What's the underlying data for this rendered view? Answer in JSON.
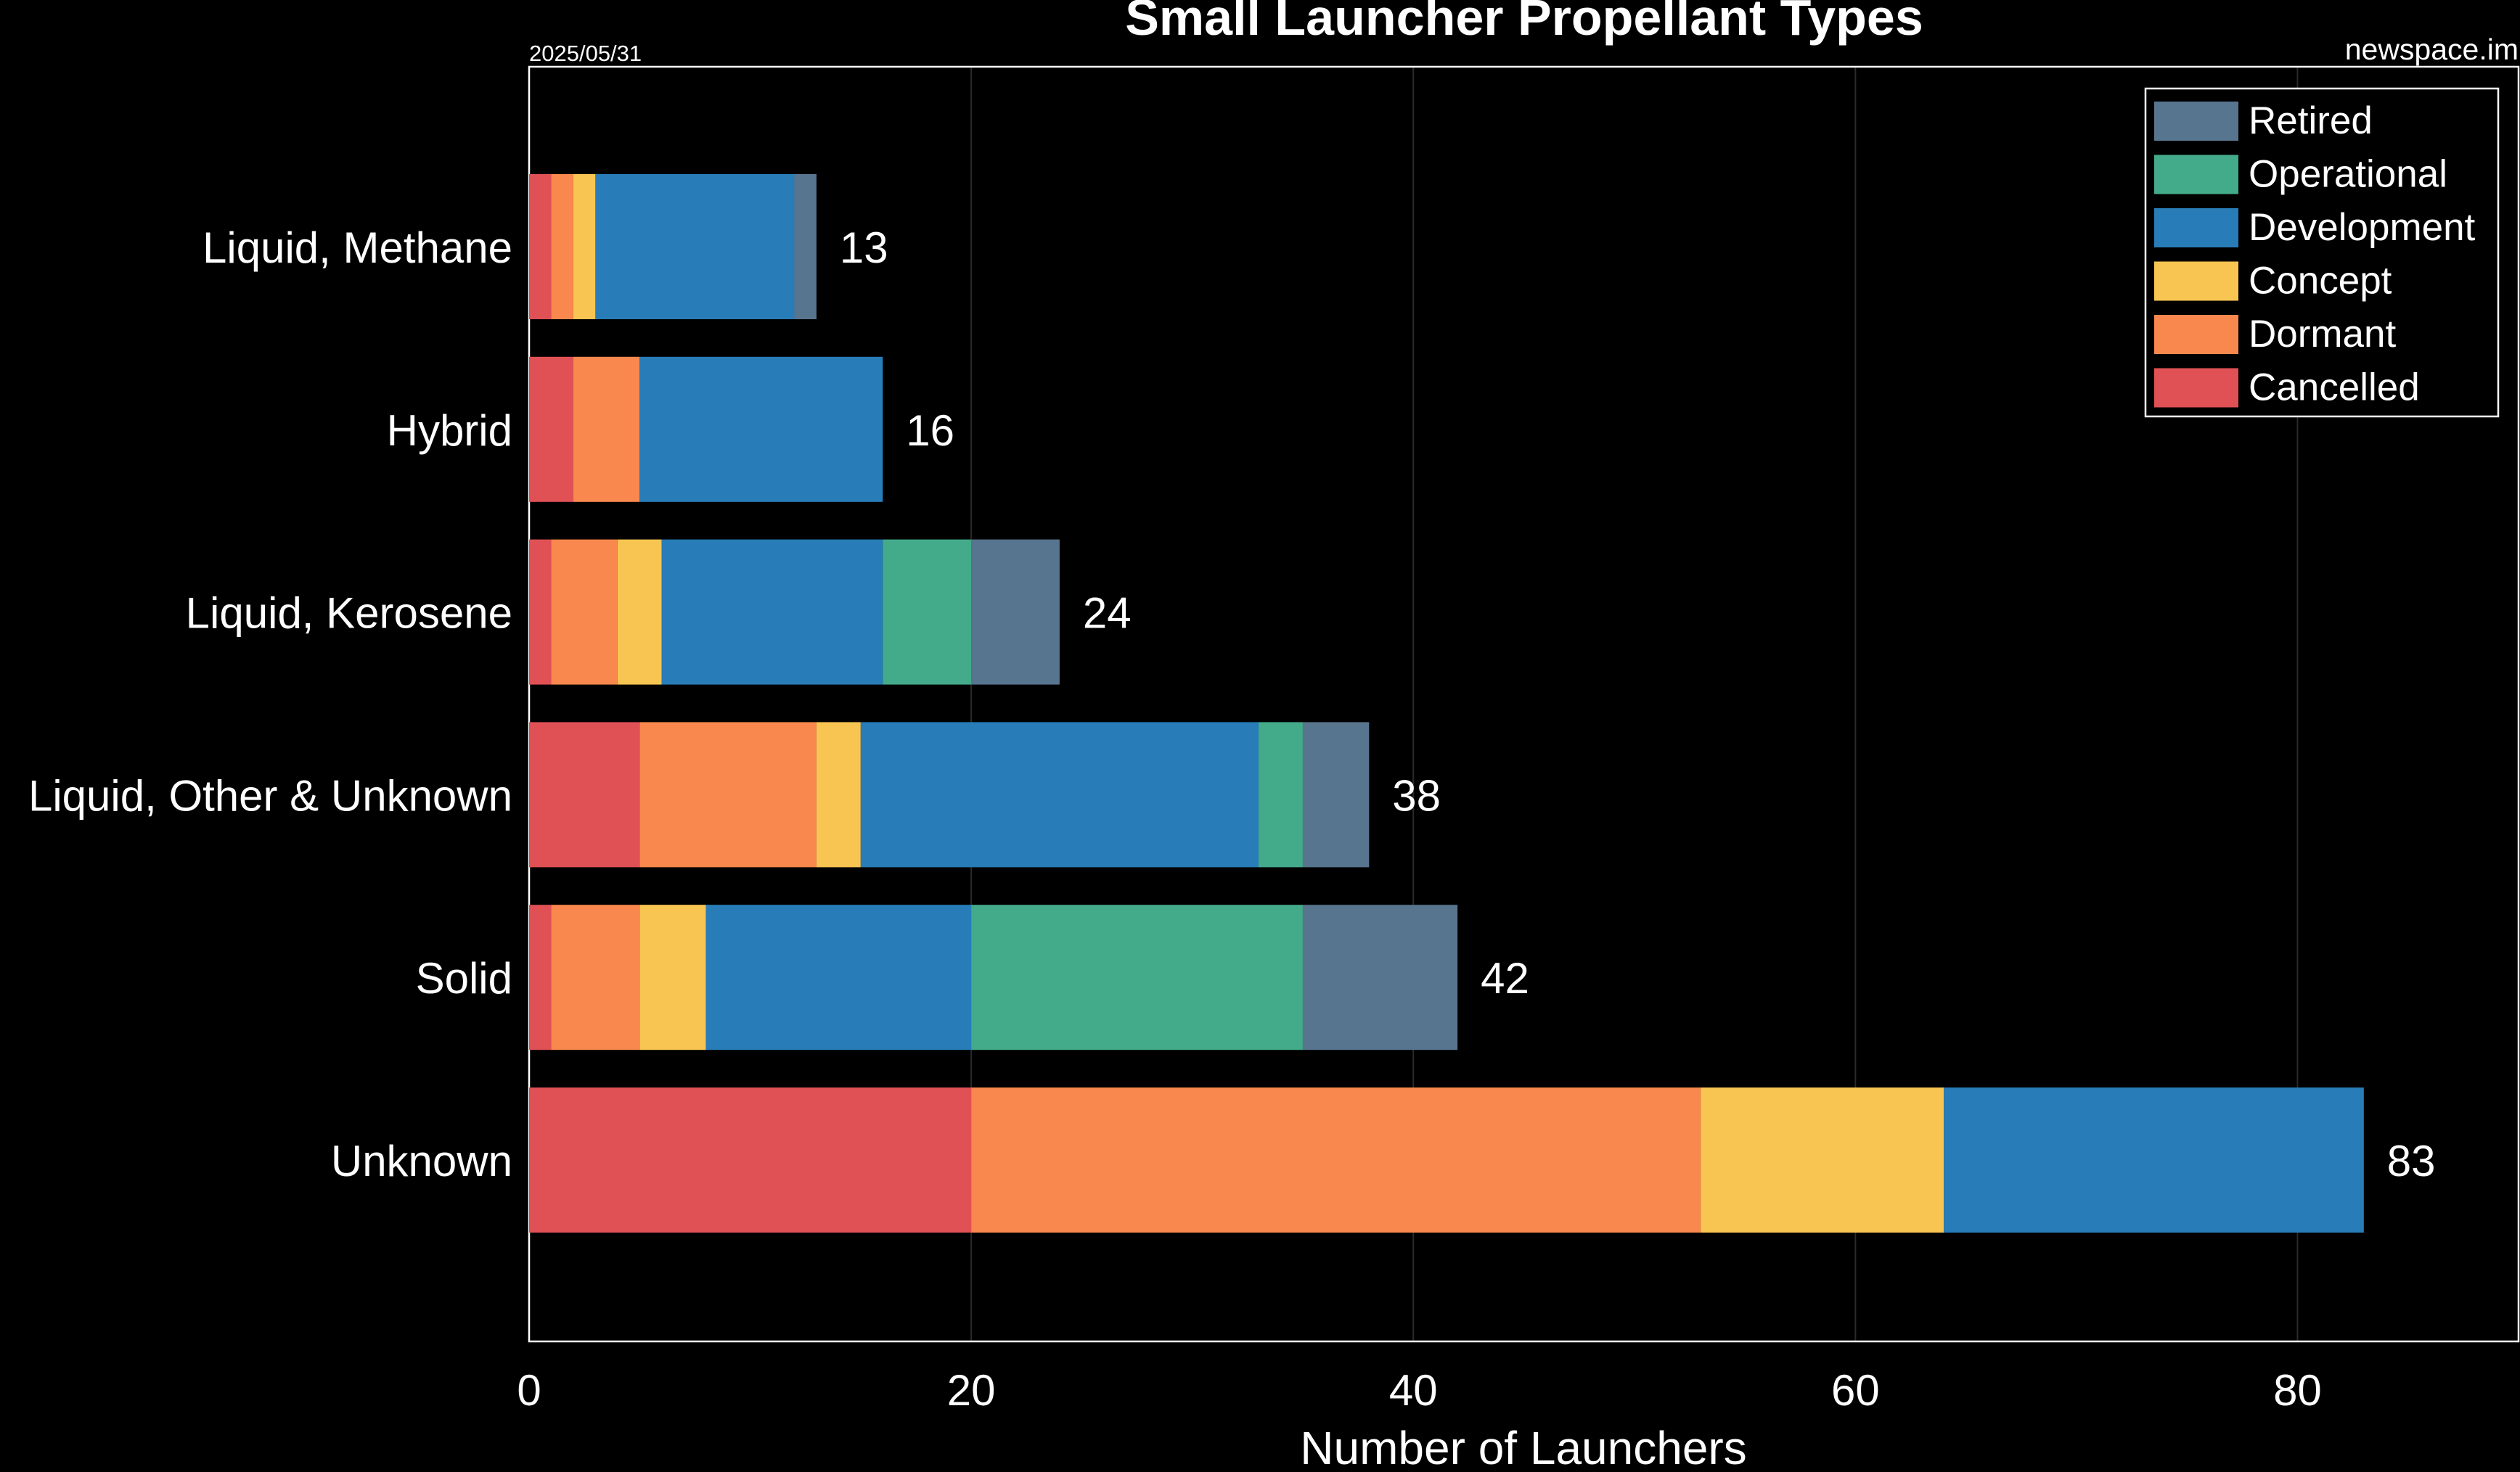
{
  "chart_data": {
    "type": "bar",
    "orientation": "horizontal",
    "stacked": true,
    "title": "Small Launcher Propellant Types",
    "date": "2025/05/31",
    "source": "newspace.im",
    "xlabel": "Number of Launchers",
    "ylabel": "",
    "xlim": [
      0,
      90
    ],
    "xticks": [
      0,
      20,
      40,
      60,
      80
    ],
    "grid": true,
    "legend_position": "top-right",
    "categories": [
      "Liquid, Methane",
      "Hybrid",
      "Liquid, Kerosene",
      "Liquid, Other & Unknown",
      "Solid",
      "Unknown"
    ],
    "totals": [
      13,
      16,
      24,
      38,
      42,
      83
    ],
    "series": [
      {
        "name": "Cancelled",
        "color": "#e05155",
        "values": [
          1,
          2,
          1,
          5,
          1,
          20
        ]
      },
      {
        "name": "Dormant",
        "color": "#f8884d",
        "values": [
          1,
          3,
          3,
          8,
          4,
          33
        ]
      },
      {
        "name": "Concept",
        "color": "#f8c552",
        "values": [
          1,
          0,
          2,
          2,
          3,
          11
        ]
      },
      {
        "name": "Development",
        "color": "#287db8",
        "values": [
          9,
          11,
          10,
          18,
          12,
          19
        ]
      },
      {
        "name": "Operational",
        "color": "#44ab8a",
        "values": [
          0,
          0,
          4,
          2,
          15,
          0
        ]
      },
      {
        "name": "Retired",
        "color": "#58758f",
        "values": [
          1,
          0,
          4,
          3,
          7,
          0
        ]
      }
    ],
    "legend_order": [
      "Retired",
      "Operational",
      "Development",
      "Concept",
      "Dormant",
      "Cancelled"
    ]
  }
}
